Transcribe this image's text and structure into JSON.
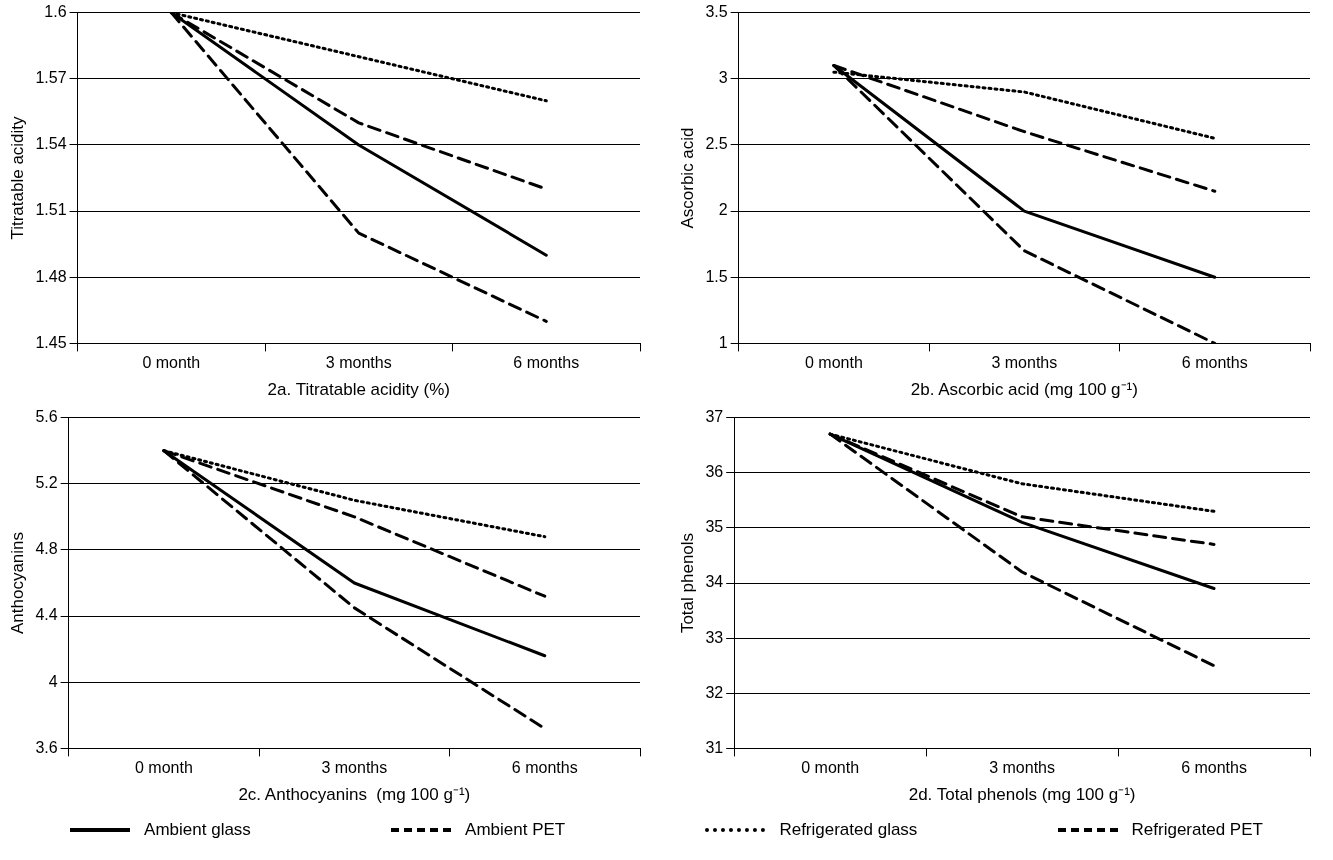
{
  "chart_data": [
    {
      "type": "line",
      "xlabel": "2a. Titratable acidity (%)",
      "ylabel": "Titratable acidity",
      "categories": [
        "0 month",
        "3 months",
        "6 months"
      ],
      "ylim": [
        1.45,
        1.6
      ],
      "yticks": [
        1.45,
        1.48,
        1.51,
        1.54,
        1.57,
        1.6
      ],
      "grid": "y",
      "marker": "none",
      "legend": "bottom",
      "series": [
        {
          "name": "Ambient glass",
          "color": "#000000",
          "line_style": "solid",
          "values": [
            1.6,
            1.54,
            1.49
          ]
        },
        {
          "name": "Ambient PET",
          "color": "#000000",
          "line_style": "dashed",
          "values": [
            1.6,
            1.5,
            1.46
          ]
        },
        {
          "name": "Refrigerated glass",
          "color": "#000000",
          "line_style": "dotted",
          "values": [
            1.6,
            1.58,
            1.56
          ]
        },
        {
          "name": "Refrigerated PET",
          "color": "#000000",
          "line_style": "dashed",
          "values": [
            1.6,
            1.55,
            1.52
          ]
        }
      ]
    },
    {
      "type": "line",
      "xlabel": "2b. Ascorbic acid (mg 100 g⁻¹)",
      "ylabel": "Ascorbic acid",
      "categories": [
        "0 month",
        "3 months",
        "6 months"
      ],
      "ylim": [
        1,
        3.5
      ],
      "yticks": [
        1,
        1.5,
        2,
        2.5,
        3,
        3.5
      ],
      "grid": "y",
      "marker": "none",
      "series": [
        {
          "color": "#000000",
          "line_style": "solid",
          "values": [
            3.1,
            2.0,
            1.5
          ]
        },
        {
          "color": "#000000",
          "line_style": "dashed",
          "values": [
            3.1,
            1.7,
            1.0
          ]
        },
        {
          "color": "#000000",
          "line_style": "dotted",
          "values": [
            3.05,
            2.9,
            2.55
          ]
        },
        {
          "color": "#000000",
          "line_style": "dashed",
          "values": [
            3.1,
            2.6,
            2.15
          ]
        }
      ]
    },
    {
      "type": "line",
      "xlabel": "2c. Anthocyanins  (mg 100 g⁻¹)",
      "ylabel": "Anthocyanins",
      "categories": [
        "0 month",
        "3 months",
        "6 months"
      ],
      "ylim": [
        3.6,
        5.6
      ],
      "yticks": [
        3.6,
        4,
        4.4,
        4.8,
        5.2,
        5.6
      ],
      "grid": "y",
      "marker": "none",
      "series": [
        {
          "color": "#000000",
          "line_style": "solid",
          "values": [
            5.4,
            4.6,
            4.16
          ]
        },
        {
          "color": "#000000",
          "line_style": "dashed",
          "values": [
            5.4,
            4.45,
            3.72
          ]
        },
        {
          "color": "#000000",
          "line_style": "dotted",
          "values": [
            5.4,
            5.1,
            4.88
          ]
        },
        {
          "color": "#000000",
          "line_style": "dashed",
          "values": [
            5.4,
            5.0,
            4.52
          ]
        }
      ]
    },
    {
      "type": "line",
      "xlabel": "2d. Total phenols (mg 100 g⁻¹)",
      "ylabel": "Total phenols",
      "categories": [
        "0 month",
        "3 months",
        "6 months"
      ],
      "ylim": [
        31,
        37
      ],
      "yticks": [
        31,
        32,
        33,
        34,
        35,
        36,
        37
      ],
      "grid": "y",
      "marker": "none",
      "series": [
        {
          "color": "#000000",
          "line_style": "solid",
          "values": [
            36.7,
            35.1,
            33.9
          ]
        },
        {
          "color": "#000000",
          "line_style": "dashed",
          "values": [
            36.7,
            34.2,
            32.5
          ]
        },
        {
          "color": "#000000",
          "line_style": "dotted",
          "values": [
            36.7,
            35.8,
            35.3
          ]
        },
        {
          "color": "#000000",
          "line_style": "dashed",
          "values": [
            36.7,
            35.2,
            34.7
          ]
        }
      ]
    }
  ]
}
